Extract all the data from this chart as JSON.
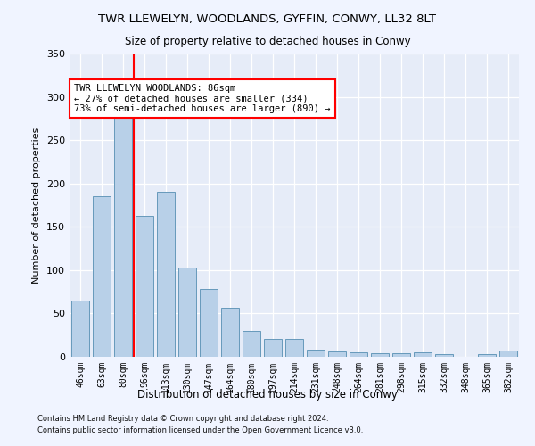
{
  "title": "TWR LLEWELYN, WOODLANDS, GYFFIN, CONWY, LL32 8LT",
  "subtitle": "Size of property relative to detached houses in Conwy",
  "xlabel": "Distribution of detached houses by size in Conwy",
  "ylabel": "Number of detached properties",
  "bar_labels": [
    "46sqm",
    "63sqm",
    "80sqm",
    "96sqm",
    "113sqm",
    "130sqm",
    "147sqm",
    "164sqm",
    "180sqm",
    "197sqm",
    "214sqm",
    "231sqm",
    "248sqm",
    "264sqm",
    "281sqm",
    "298sqm",
    "315sqm",
    "332sqm",
    "348sqm",
    "365sqm",
    "382sqm"
  ],
  "bar_heights": [
    65,
    185,
    295,
    163,
    190,
    103,
    78,
    57,
    30,
    21,
    21,
    8,
    6,
    5,
    4,
    4,
    5,
    3,
    0,
    3,
    7
  ],
  "bar_color": "#b8d0e8",
  "bar_edge_color": "#6699bb",
  "red_line_x": 2.5,
  "annotation_title": "TWR LLEWELYN WOODLANDS: 86sqm",
  "annotation_line2": "← 27% of detached houses are smaller (334)",
  "annotation_line3": "73% of semi-detached houses are larger (890) →",
  "ylim_max": 350,
  "yticks": [
    0,
    50,
    100,
    150,
    200,
    250,
    300,
    350
  ],
  "fig_bg": "#f0f4ff",
  "plot_bg": "#e6ecf8",
  "footer1": "Contains HM Land Registry data © Crown copyright and database right 2024.",
  "footer2": "Contains public sector information licensed under the Open Government Licence v3.0."
}
